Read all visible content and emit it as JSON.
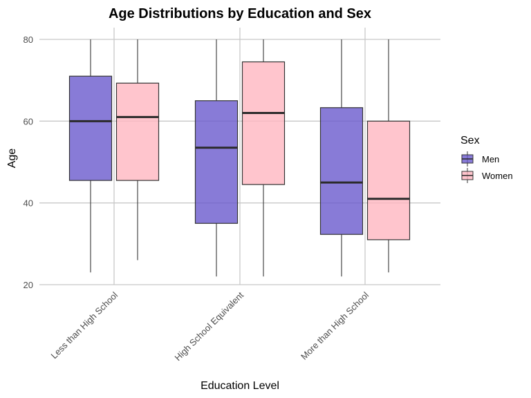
{
  "chart_data": {
    "type": "boxplot",
    "title": "Age Distributions by Education and Sex",
    "xlabel": "Education Level",
    "ylabel": "Age",
    "ylim": [
      20,
      80
    ],
    "yticks": [
      20,
      40,
      60,
      80
    ],
    "grid": true,
    "legend": {
      "title": "Sex",
      "position": "right"
    },
    "categories": [
      "Less than High School",
      "High School Equivalent",
      "More than High School"
    ],
    "series": [
      {
        "name": "Men",
        "color": "#6a5acd",
        "boxes": [
          {
            "min": 23,
            "q1": 45.5,
            "median": 60,
            "q3": 71,
            "max": 80
          },
          {
            "min": 22,
            "q1": 35,
            "median": 53.5,
            "q3": 65,
            "max": 80
          },
          {
            "min": 22,
            "q1": 32.3,
            "median": 45,
            "q3": 63.3,
            "max": 80
          }
        ]
      },
      {
        "name": "Women",
        "color": "#ffb6c1",
        "boxes": [
          {
            "min": 26,
            "q1": 45.5,
            "median": 61,
            "q3": 69.3,
            "max": 80
          },
          {
            "min": 22,
            "q1": 44.5,
            "median": 62,
            "q3": 74.5,
            "max": 80
          },
          {
            "min": 23,
            "q1": 31,
            "median": 41,
            "q3": 60,
            "max": 80
          }
        ]
      }
    ]
  }
}
